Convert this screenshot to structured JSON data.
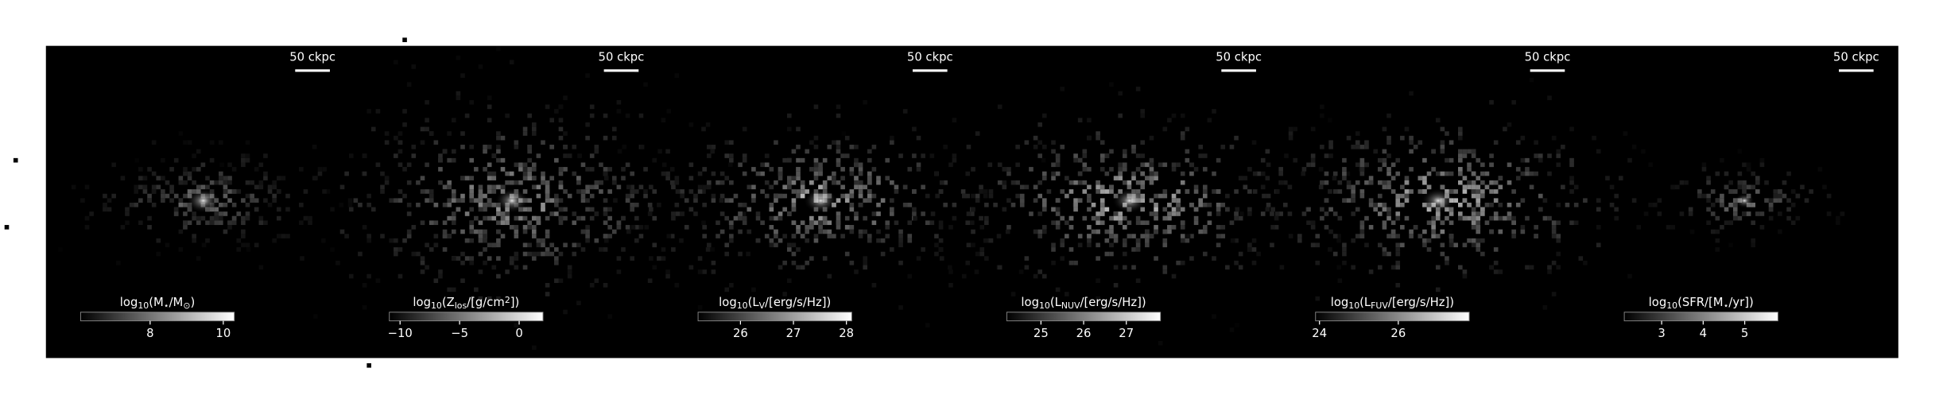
{
  "panels": [
    {
      "scale_bar": "50 ckpc",
      "colorbar": {
        "label": [
          {
            "t": "log"
          },
          {
            "t": "10",
            "sub": true
          },
          {
            "t": "(M"
          },
          {
            "t": "⋆",
            "sub": true
          },
          {
            "t": "/M"
          },
          {
            "t": "⊙",
            "sub": true
          },
          {
            "t": ")"
          }
        ],
        "clim": [
          6.1,
          10.3
        ],
        "ticks": [
          8,
          10
        ]
      }
    },
    {
      "scale_bar": "50 ckpc",
      "colorbar": {
        "label": [
          {
            "t": "log"
          },
          {
            "t": "10",
            "sub": true
          },
          {
            "t": "(Z"
          },
          {
            "t": "los",
            "sub": true
          },
          {
            "t": "/[g/cm"
          },
          {
            "t": "2",
            "sup": true
          },
          {
            "t": "])"
          }
        ],
        "clim": [
          -10.9,
          2.0
        ],
        "ticks": [
          {
            "value": -10,
            "label": "−10"
          },
          {
            "value": -5,
            "label": "−5"
          },
          0
        ]
      }
    },
    {
      "scale_bar": "50 ckpc",
      "colorbar": {
        "label": [
          {
            "t": "log"
          },
          {
            "t": "10",
            "sub": true
          },
          {
            "t": "(L"
          },
          {
            "t": "V",
            "sub": true
          },
          {
            "t": "/[erg/s/Hz])"
          }
        ],
        "clim": [
          25.2,
          28.1
        ],
        "ticks": [
          26,
          27,
          28
        ]
      }
    },
    {
      "scale_bar": "50 ckpc",
      "colorbar": {
        "label": [
          {
            "t": "log"
          },
          {
            "t": "10",
            "sub": true
          },
          {
            "t": "(L"
          },
          {
            "t": "NUV",
            "sub": true
          },
          {
            "t": "/[erg/s/Hz])"
          }
        ],
        "clim": [
          24.2,
          27.8
        ],
        "ticks": [
          25,
          26,
          27
        ]
      }
    },
    {
      "scale_bar": "50 ckpc",
      "colorbar": {
        "label": [
          {
            "t": "log"
          },
          {
            "t": "10",
            "sub": true
          },
          {
            "t": "(L"
          },
          {
            "t": "FUV",
            "sub": true
          },
          {
            "t": "/[erg/s/Hz])"
          }
        ],
        "clim": [
          23.9,
          27.8
        ],
        "ticks": [
          24,
          26
        ]
      }
    },
    {
      "scale_bar": "50 ckpc",
      "colorbar": {
        "label": [
          {
            "t": "log"
          },
          {
            "t": "10",
            "sub": true
          },
          {
            "t": "(SFR/[M"
          },
          {
            "t": "⋆",
            "sub": true
          },
          {
            "t": "/yr])"
          }
        ],
        "clim": [
          2.1,
          5.8
        ],
        "ticks": [
          3,
          4,
          5
        ]
      }
    }
  ]
}
